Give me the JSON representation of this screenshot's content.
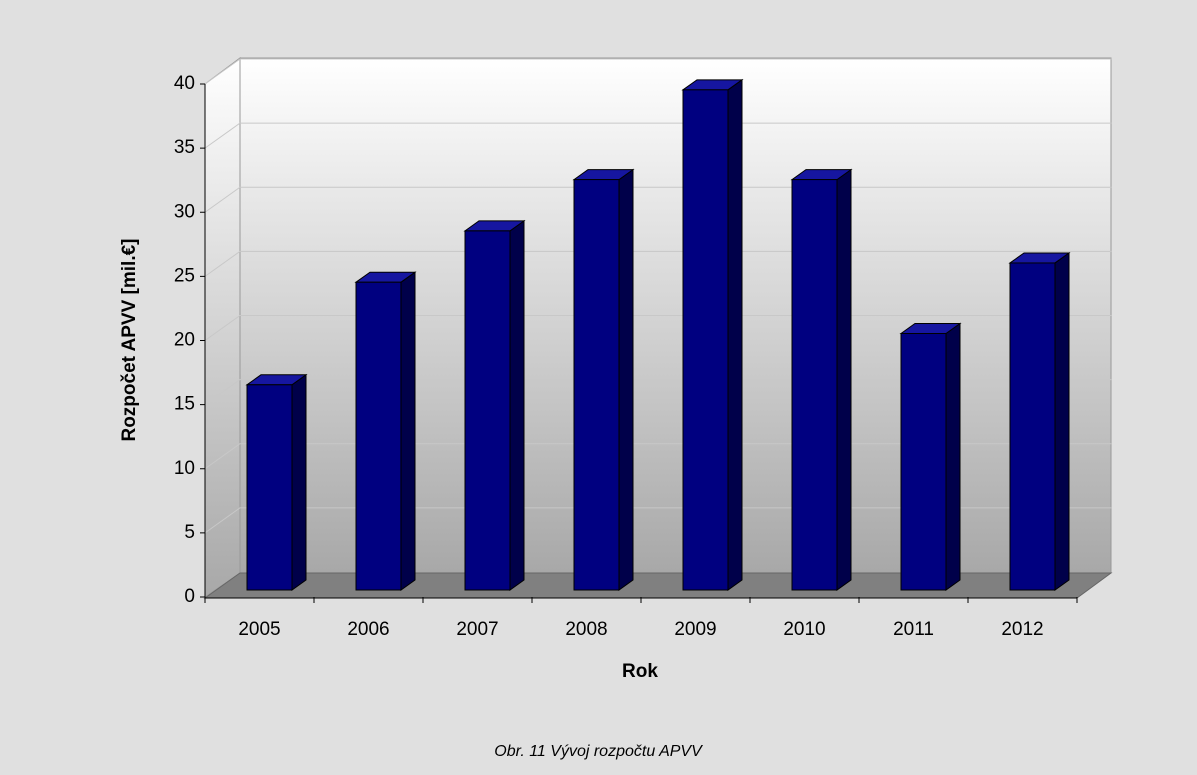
{
  "chart_data": {
    "type": "bar3d",
    "caption": "Obr. 11  Vývoj rozpočtu APVV",
    "x_label": "Rok",
    "y_label": "Rozpočet APVV  [mil.€]",
    "categories": [
      "2005",
      "2006",
      "2007",
      "2008",
      "2009",
      "2010",
      "2011",
      "2012"
    ],
    "values": [
      16,
      24,
      28,
      32,
      39,
      32,
      20,
      25.5
    ],
    "color": "#000080",
    "ylim": [
      0,
      40
    ],
    "yticks": [
      0,
      5,
      10,
      15,
      20,
      25,
      30,
      35,
      40
    ],
    "grid": true
  }
}
